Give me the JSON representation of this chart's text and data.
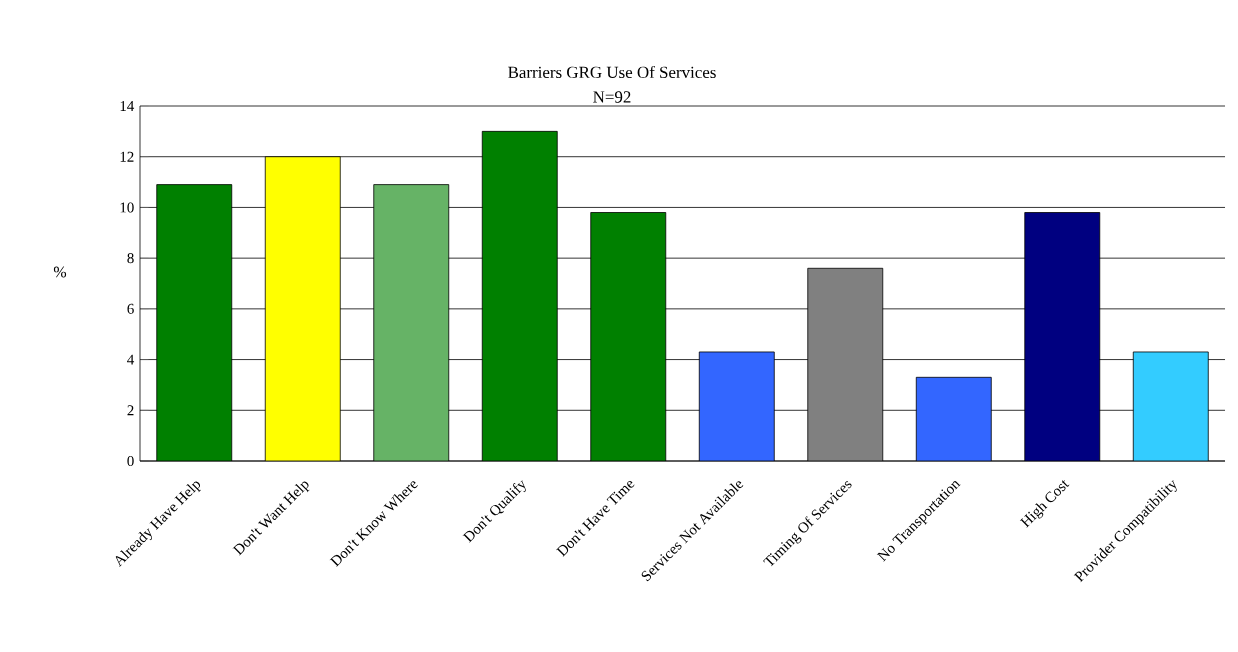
{
  "chart_data": {
    "type": "bar",
    "title": "Barriers GRG Use Of Services",
    "subtitle": "N=92",
    "ylabel": "%",
    "categories": [
      "Already Have Help",
      "Don't Want Help",
      "Don't Know Where",
      "Don't Qualify",
      "Don't Have Time",
      "Services Not Available",
      "Timing Of Services",
      "No Transportation",
      "High Cost",
      "Provider Compatibility"
    ],
    "values": [
      10.9,
      12.0,
      10.9,
      13.0,
      9.8,
      4.3,
      7.6,
      3.3,
      9.8,
      4.3
    ],
    "colors": [
      "#008000",
      "#ffff00",
      "#66b366",
      "#008000",
      "#008000",
      "#3366ff",
      "#808080",
      "#3366ff",
      "#000080",
      "#33ccff"
    ],
    "ylim": [
      0,
      14
    ],
    "yticks": [
      0,
      2,
      4,
      6,
      8,
      10,
      12,
      14
    ],
    "grid": "y"
  }
}
